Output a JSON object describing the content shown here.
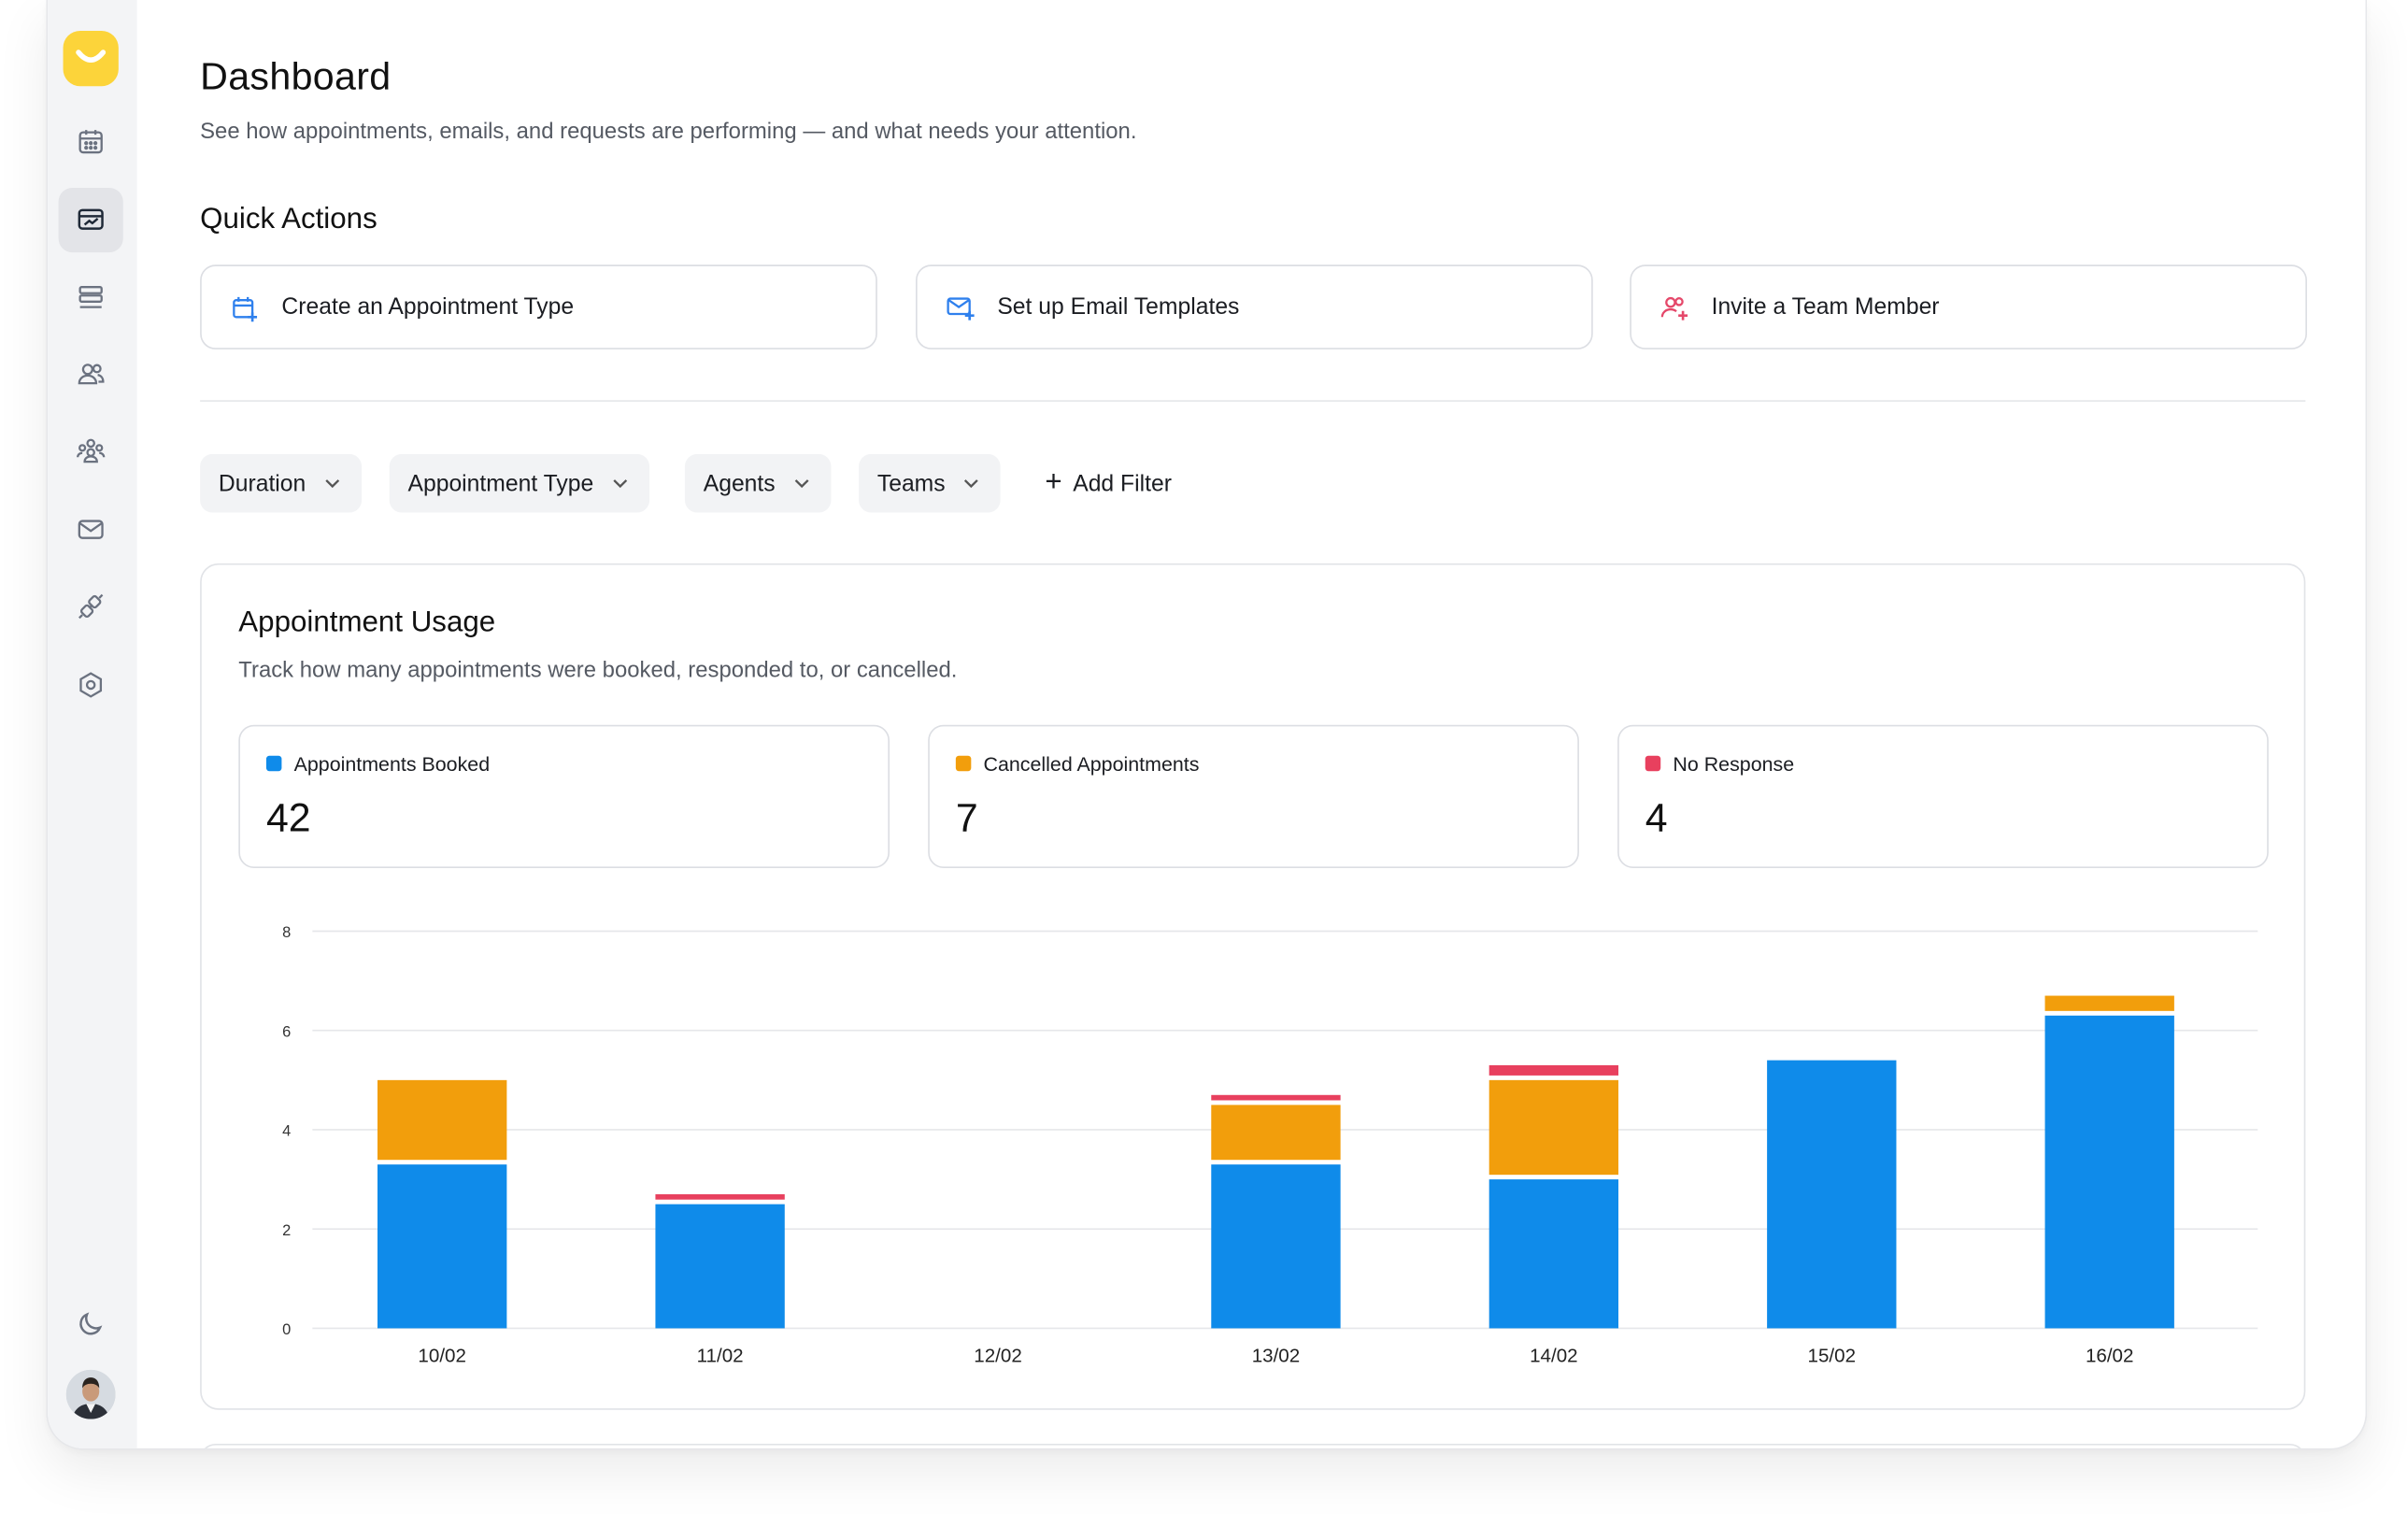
{
  "page": {
    "title": "Dashboard",
    "subtitle": "See how appointments, emails, and requests are performing — and what needs your attention."
  },
  "quick_actions": {
    "title": "Quick Actions",
    "items": [
      {
        "label": "Create an Appointment Type",
        "icon": "calendar-plus-icon",
        "color": "#2f80ed"
      },
      {
        "label": "Set up Email Templates",
        "icon": "mail-plus-icon",
        "color": "#2f80ed"
      },
      {
        "label": "Invite a Team Member",
        "icon": "user-plus-icon",
        "color": "#e5486a"
      }
    ]
  },
  "filters": {
    "items": [
      "Duration",
      "Appointment Type",
      "Agents",
      "Teams"
    ],
    "add_label": "Add Filter"
  },
  "sidebar": {
    "items": [
      {
        "icon": "calendar-icon",
        "active": false
      },
      {
        "icon": "dashboard-icon",
        "active": true
      },
      {
        "icon": "list-icon",
        "active": false
      },
      {
        "icon": "users-icon",
        "active": false
      },
      {
        "icon": "teams-icon",
        "active": false
      },
      {
        "icon": "mail-icon",
        "active": false
      },
      {
        "icon": "integrations-icon",
        "active": false
      },
      {
        "icon": "settings-icon",
        "active": false
      }
    ],
    "bottom": [
      "moon-icon",
      "avatar"
    ]
  },
  "usage": {
    "title": "Appointment Usage",
    "subtitle": "Track how many appointments were booked, responded to, or cancelled.",
    "stats": [
      {
        "label": "Appointments Booked",
        "value": "42",
        "color": "#0f8bea"
      },
      {
        "label": "Cancelled Appointments",
        "value": "7",
        "color": "#f29e0c"
      },
      {
        "label": "No Response",
        "value": "4",
        "color": "#e8405e"
      }
    ]
  },
  "chart_data": {
    "type": "bar",
    "stacked": true,
    "categories": [
      "10/02",
      "11/02",
      "12/02",
      "13/02",
      "14/02",
      "15/02",
      "16/02"
    ],
    "series": [
      {
        "name": "Appointments Booked",
        "color": "#0f8bea",
        "values": [
          3.3,
          2.5,
          0,
          3.3,
          3.0,
          5.4,
          6.3
        ]
      },
      {
        "name": "Cancelled Appointments",
        "color": "#f29e0c",
        "values": [
          1.7,
          0,
          0,
          1.2,
          2.0,
          0,
          0.4
        ]
      },
      {
        "name": "No Response",
        "color": "#e8405e",
        "values": [
          0,
          0.2,
          0,
          0.2,
          0.3,
          0,
          0
        ]
      }
    ],
    "yticks": [
      "0",
      "2",
      "4",
      "6",
      "8"
    ],
    "ylim": [
      0,
      8
    ],
    "grid": true
  }
}
